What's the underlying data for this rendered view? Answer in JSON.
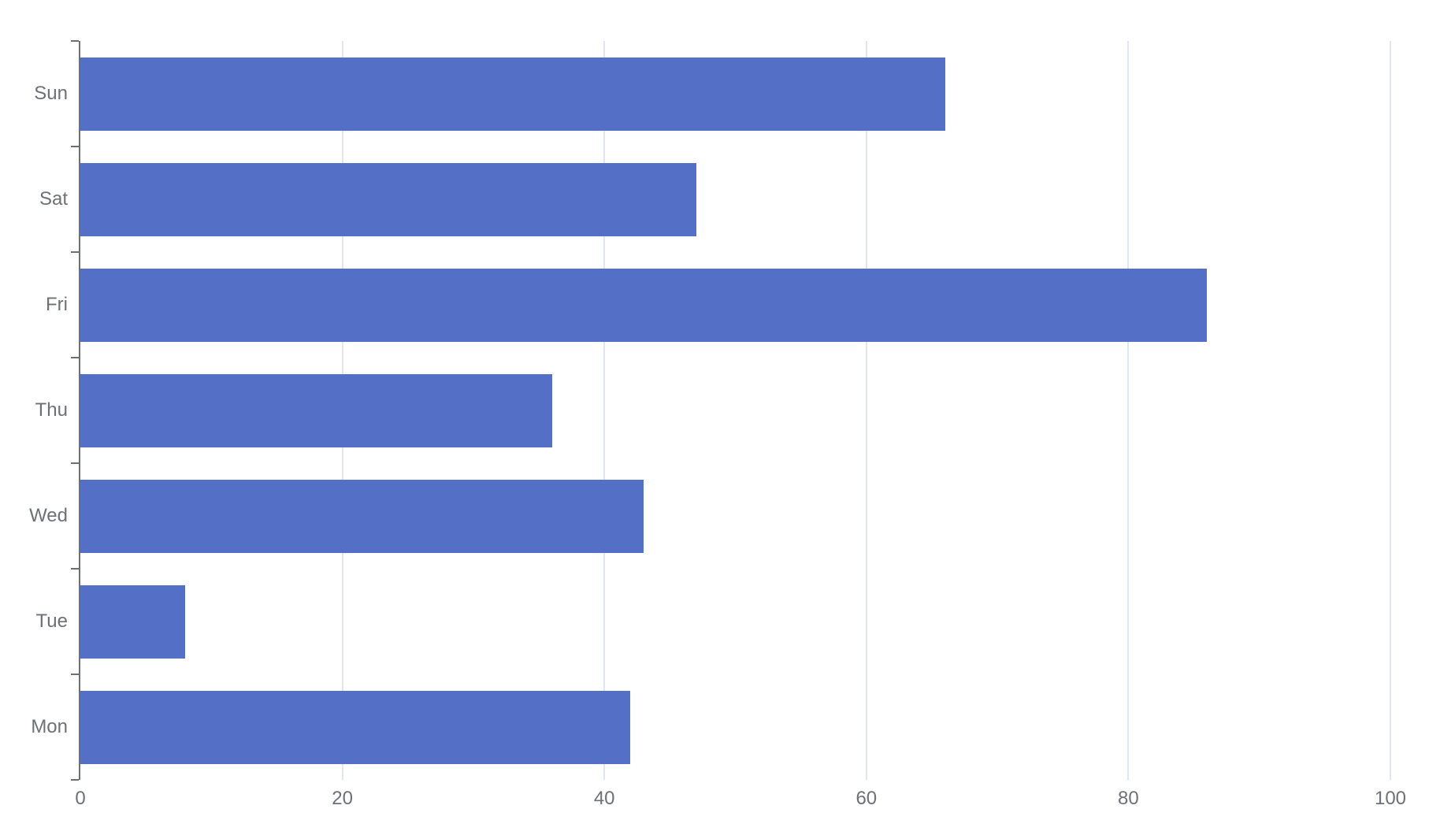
{
  "chart_data": {
    "type": "bar",
    "orientation": "horizontal",
    "title": "",
    "xlabel": "",
    "ylabel": "",
    "categories": [
      "Sun",
      "Sat",
      "Fri",
      "Thu",
      "Wed",
      "Tue",
      "Mon"
    ],
    "category_order": "top-to-bottom",
    "values": [
      66,
      47,
      86,
      36,
      43,
      8,
      42
    ],
    "xlim": [
      0,
      100
    ],
    "x_ticks": [
      0,
      20,
      40,
      60,
      80,
      100
    ],
    "grid": true,
    "legend": false,
    "colors": {
      "bar": "#5470C6",
      "gridline": "#E0E6F1",
      "axis": "#6E7079",
      "tick_label": "#6E7079",
      "background": "#FFFFFF"
    }
  }
}
